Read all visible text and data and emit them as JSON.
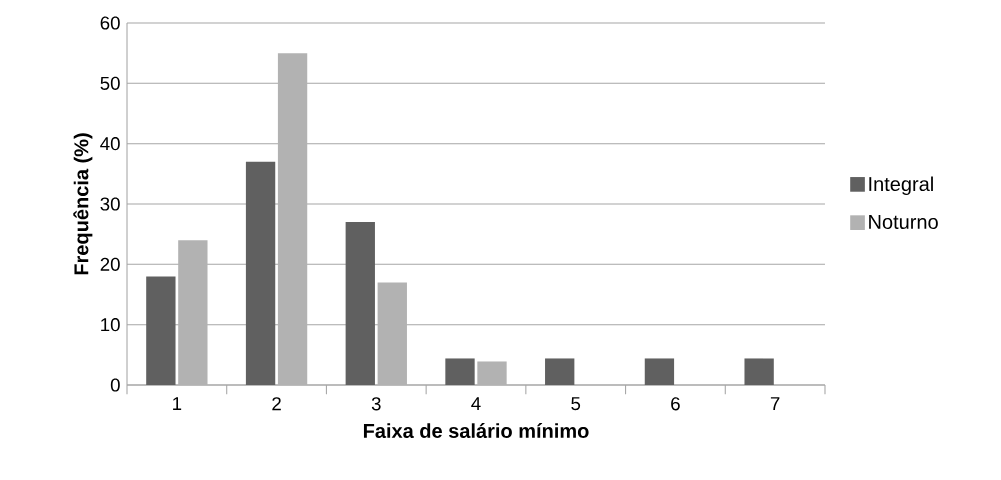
{
  "chart_data": {
    "type": "bar",
    "xlabel": "Faixa de salário mínimo",
    "ylabel": "Frequência (%)",
    "categories": [
      "1",
      "2",
      "3",
      "4",
      "5",
      "6",
      "7"
    ],
    "series": [
      {
        "name": "Integral",
        "color": "#606060",
        "values": [
          18,
          37,
          27,
          4.4,
          4.4,
          4.4,
          4.4
        ]
      },
      {
        "name": "Noturno",
        "color": "#b2b2b2",
        "values": [
          24,
          55,
          17,
          3.9,
          0,
          0,
          0
        ]
      }
    ],
    "ylim": [
      0,
      60
    ],
    "yticks": [
      0,
      10,
      20,
      30,
      40,
      50,
      60
    ],
    "grid": "y",
    "legend": "right"
  }
}
